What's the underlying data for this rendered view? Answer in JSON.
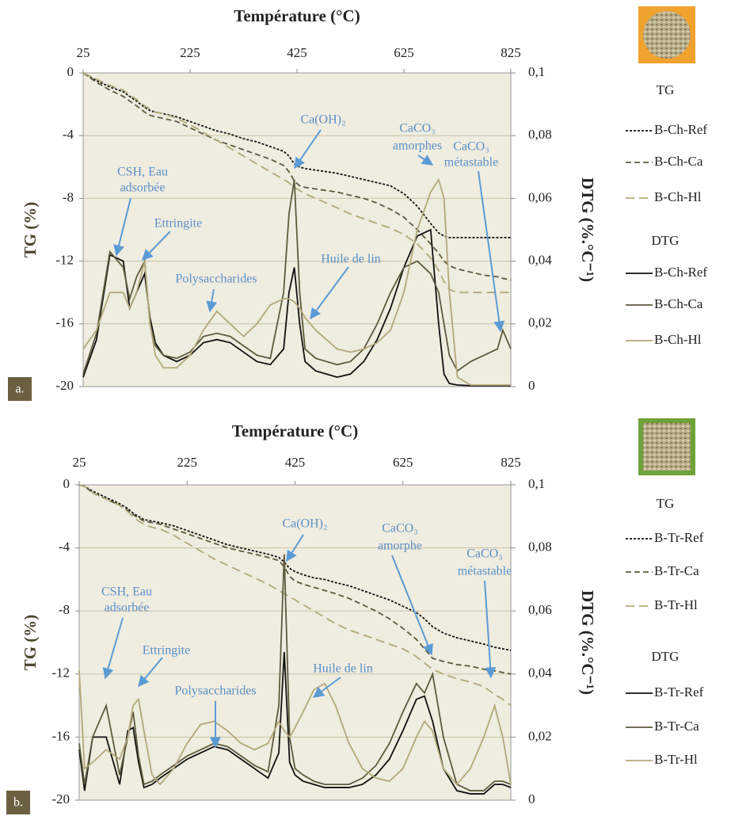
{
  "chart_data": [
    {
      "type": "line",
      "x_label": "Température (°C)",
      "y_label": "TG (%)",
      "y2_label": "DTG (%.°C⁻¹)",
      "panel_label": "a.",
      "x": [
        25,
        50,
        75,
        100,
        112,
        125,
        140,
        150,
        160,
        175,
        200,
        225,
        250,
        275,
        300,
        325,
        350,
        375,
        400,
        410,
        420,
        430,
        440,
        460,
        480,
        500,
        525,
        550,
        575,
        600,
        625,
        650,
        675,
        690,
        700,
        710,
        725,
        750,
        775,
        800,
        810,
        825
      ],
      "xlim": [
        25,
        825
      ],
      "xticks": [
        25,
        225,
        425,
        625,
        825
      ],
      "ylim": [
        -20,
        0
      ],
      "yticks": [
        0,
        -4,
        -8,
        -12,
        -16,
        -20
      ],
      "y2lim": [
        0,
        0.1
      ],
      "y2ticks": [
        {
          "value": 0.1,
          "label": "0,1"
        },
        {
          "value": 0.08,
          "label": "0,08"
        },
        {
          "value": 0.06,
          "label": "0,06"
        },
        {
          "value": 0.04,
          "label": "0,04"
        },
        {
          "value": 0.02,
          "label": "0,02"
        },
        0
      ],
      "grid": true,
      "legend_titles": {
        "y": "TG",
        "y2": "DTG"
      },
      "series": [
        {
          "name": "B-Ch-Ref",
          "color": "#111111",
          "values": [
            0,
            -0.5,
            -0.9,
            -1.2,
            -1.5,
            -1.8,
            -2.2,
            -2.4,
            -2.5,
            -2.6,
            -2.8,
            -3.1,
            -3.4,
            -3.7,
            -3.9,
            -4.2,
            -4.4,
            -4.7,
            -5,
            -5.3,
            -5.8,
            -6,
            -6.1,
            -6.2,
            -6.3,
            -6.4,
            -6.6,
            -6.8,
            -7,
            -7.2,
            -7.7,
            -8.5,
            -9.6,
            -10.2,
            -10.4,
            -10.5,
            -10.5,
            -10.5,
            -10.5,
            -10.5,
            -10.5,
            -10.5
          ]
        },
        {
          "name": "B-Ch-Ca",
          "color": "#5e5a3e",
          "values": [
            0,
            -0.6,
            -1.1,
            -1.5,
            -1.8,
            -2.1,
            -2.5,
            -2.7,
            -2.8,
            -2.9,
            -3.1,
            -3.5,
            -3.9,
            -4.3,
            -4.6,
            -4.9,
            -5.2,
            -5.5,
            -5.9,
            -6.3,
            -6.9,
            -7.2,
            -7.3,
            -7.4,
            -7.5,
            -7.6,
            -7.8,
            -8,
            -8.3,
            -8.7,
            -9.2,
            -10,
            -10.9,
            -11.5,
            -12,
            -12.3,
            -12.5,
            -12.7,
            -12.9,
            -13,
            -13.1,
            -13.2
          ]
        },
        {
          "name": "B-Ch-Hl",
          "color": "#b3a87a",
          "values": [
            0,
            -0.4,
            -0.8,
            -1.1,
            -1.4,
            -1.7,
            -2.1,
            -2.3,
            -2.5,
            -2.6,
            -2.9,
            -3.3,
            -3.8,
            -4.3,
            -4.8,
            -5.3,
            -5.8,
            -6.3,
            -6.8,
            -7,
            -7.3,
            -7.5,
            -7.7,
            -8,
            -8.3,
            -8.6,
            -9,
            -9.3,
            -9.6,
            -9.9,
            -10.3,
            -10.9,
            -11.8,
            -12.6,
            -13.3,
            -13.8,
            -14,
            -14,
            -14,
            -14,
            -14,
            -14
          ]
        },
        {
          "name": "B-Ch-Ref",
          "color": "#111111",
          "axis": "y2",
          "values": [
            0.003,
            0.015,
            0.042,
            0.04,
            0.025,
            0.03,
            0.036,
            0.022,
            0.014,
            0.01,
            0.008,
            0.01,
            0.014,
            0.015,
            0.014,
            0.011,
            0.008,
            0.007,
            0.012,
            0.03,
            0.038,
            0.02,
            0.008,
            0.005,
            0.004,
            0.003,
            0.004,
            0.008,
            0.015,
            0.025,
            0.038,
            0.048,
            0.05,
            0.02,
            0.004,
            0.001,
            0.0005,
            0.0003,
            0.0003,
            0.0003,
            0.0003,
            0.0003
          ]
        },
        {
          "name": "B-Ch-Ca",
          "color": "#5e5a3e",
          "axis": "y2",
          "values": [
            0.004,
            0.017,
            0.043,
            0.038,
            0.028,
            0.035,
            0.04,
            0.02,
            0.013,
            0.01,
            0.009,
            0.011,
            0.016,
            0.017,
            0.016,
            0.013,
            0.01,
            0.009,
            0.03,
            0.055,
            0.066,
            0.03,
            0.012,
            0.009,
            0.008,
            0.007,
            0.008,
            0.012,
            0.02,
            0.03,
            0.038,
            0.04,
            0.036,
            0.03,
            0.02,
            0.01,
            0.005,
            0.008,
            0.01,
            0.012,
            0.018,
            0.012
          ]
        },
        {
          "name": "B-Ch-Hl",
          "color": "#b3a87a",
          "axis": "y2",
          "values": [
            0.012,
            0.018,
            0.03,
            0.03,
            0.025,
            0.03,
            0.04,
            0.02,
            0.01,
            0.006,
            0.006,
            0.01,
            0.018,
            0.024,
            0.02,
            0.016,
            0.02,
            0.026,
            0.028,
            0.028,
            0.027,
            0.025,
            0.022,
            0.018,
            0.015,
            0.012,
            0.011,
            0.012,
            0.014,
            0.018,
            0.03,
            0.05,
            0.062,
            0.066,
            0.06,
            0.03,
            0.003,
            0.0005,
            0.0005,
            0.0005,
            0.0005,
            0.0005
          ]
        }
      ],
      "annotations": [
        {
          "lines": [
            "CSH, Eau",
            "adsorbée"
          ]
        },
        {
          "lines": [
            "Ettringite"
          ]
        },
        {
          "lines": [
            "Polysaccharides"
          ]
        },
        {
          "lines": [
            "Ca(OH)₂"
          ]
        },
        {
          "lines": [
            "CaCO₃",
            "amorphes"
          ]
        },
        {
          "lines": [
            "CaCO₃",
            "métastable"
          ]
        },
        {
          "lines": [
            "Huile de lin"
          ]
        }
      ]
    },
    {
      "type": "line",
      "x_label": "Température (°C)",
      "y_label": "TG (%)",
      "y2_label": "DTG (%.°C⁻¹)",
      "panel_label": "b.",
      "x": [
        25,
        35,
        50,
        75,
        100,
        115,
        125,
        135,
        145,
        160,
        175,
        200,
        225,
        250,
        275,
        300,
        325,
        350,
        375,
        395,
        405,
        415,
        425,
        440,
        460,
        480,
        500,
        525,
        550,
        575,
        600,
        625,
        650,
        665,
        680,
        700,
        725,
        750,
        775,
        795,
        810,
        825
      ],
      "xlim": [
        25,
        825
      ],
      "xticks": [
        25,
        225,
        425,
        625,
        825
      ],
      "ylim": [
        -20,
        0
      ],
      "yticks": [
        0,
        -4,
        -8,
        -12,
        -16,
        -20
      ],
      "y2lim": [
        0,
        0.1
      ],
      "y2ticks": [
        {
          "value": 0.1,
          "label": "0,1"
        },
        {
          "value": 0.08,
          "label": "0,08"
        },
        {
          "value": 0.06,
          "label": "0,06"
        },
        {
          "value": 0.04,
          "label": "0,04"
        },
        {
          "value": 0.02,
          "label": "0,02"
        },
        0
      ],
      "grid": true,
      "legend_titles": {
        "y": "TG",
        "y2": "DTG"
      },
      "series": [
        {
          "name": "B-Tr-Ref",
          "color": "#111111",
          "values": [
            0,
            -0.1,
            -0.4,
            -0.8,
            -1.2,
            -1.5,
            -1.8,
            -2,
            -2.2,
            -2.3,
            -2.4,
            -2.6,
            -2.9,
            -3.2,
            -3.5,
            -3.8,
            -4,
            -4.2,
            -4.4,
            -4.6,
            -4.9,
            -5.3,
            -5.5,
            -5.7,
            -5.9,
            -6,
            -6.2,
            -6.4,
            -6.7,
            -7,
            -7.3,
            -7.7,
            -8.1,
            -8.5,
            -9,
            -9.4,
            -9.7,
            -9.9,
            -10.1,
            -10.3,
            -10.4,
            -10.5
          ]
        },
        {
          "name": "B-Tr-Ca",
          "color": "#5e5a3e",
          "values": [
            0,
            -0.1,
            -0.5,
            -0.9,
            -1.3,
            -1.6,
            -1.9,
            -2.1,
            -2.3,
            -2.4,
            -2.5,
            -2.8,
            -3.1,
            -3.4,
            -3.7,
            -4,
            -4.2,
            -4.4,
            -4.6,
            -4.8,
            -5.2,
            -5.8,
            -6.1,
            -6.3,
            -6.5,
            -6.7,
            -6.9,
            -7.2,
            -7.6,
            -8,
            -8.5,
            -9.1,
            -9.8,
            -10.4,
            -11,
            -11.2,
            -11.4,
            -11.5,
            -11.7,
            -11.8,
            -11.9,
            -12
          ]
        },
        {
          "name": "B-Tr-Hl",
          "color": "#b3a87a",
          "values": [
            0,
            -0.1,
            -0.5,
            -0.9,
            -1.3,
            -1.7,
            -2,
            -2.3,
            -2.5,
            -2.7,
            -2.8,
            -3.2,
            -3.7,
            -4.2,
            -4.7,
            -5.1,
            -5.5,
            -5.9,
            -6.3,
            -6.7,
            -6.9,
            -7.1,
            -7.3,
            -7.6,
            -8,
            -8.4,
            -8.8,
            -9.2,
            -9.5,
            -9.8,
            -10.1,
            -10.4,
            -10.9,
            -11.3,
            -11.7,
            -12,
            -12.3,
            -12.5,
            -12.8,
            -13.3,
            -13.6,
            -14
          ]
        },
        {
          "name": "B-Tr-Ref",
          "color": "#111111",
          "axis": "y2",
          "values": [
            0.016,
            0.003,
            0.02,
            0.02,
            0.005,
            0.022,
            0.023,
            0.012,
            0.004,
            0.005,
            0.007,
            0.01,
            0.013,
            0.015,
            0.017,
            0.016,
            0.013,
            0.01,
            0.007,
            0.015,
            0.047,
            0.012,
            0.008,
            0.006,
            0.005,
            0.004,
            0.004,
            0.004,
            0.005,
            0.008,
            0.013,
            0.022,
            0.032,
            0.033,
            0.025,
            0.01,
            0.003,
            0.002,
            0.002,
            0.005,
            0.005,
            0.004
          ]
        },
        {
          "name": "B-Tr-Ca",
          "color": "#5e5a3e",
          "axis": "y2",
          "values": [
            0.018,
            0.005,
            0.02,
            0.03,
            0.008,
            0.02,
            0.028,
            0.014,
            0.005,
            0.006,
            0.008,
            0.011,
            0.014,
            0.016,
            0.018,
            0.017,
            0.014,
            0.011,
            0.009,
            0.03,
            0.078,
            0.02,
            0.01,
            0.008,
            0.006,
            0.005,
            0.005,
            0.005,
            0.007,
            0.011,
            0.018,
            0.028,
            0.037,
            0.034,
            0.04,
            0.02,
            0.005,
            0.003,
            0.003,
            0.006,
            0.006,
            0.005
          ]
        },
        {
          "name": "B-Tr-Hl",
          "color": "#b3a87a",
          "axis": "y2",
          "values": [
            0.041,
            0.01,
            0.012,
            0.016,
            0.013,
            0.02,
            0.03,
            0.032,
            0.022,
            0.008,
            0.005,
            0.01,
            0.018,
            0.024,
            0.025,
            0.022,
            0.018,
            0.016,
            0.018,
            0.025,
            0.022,
            0.02,
            0.023,
            0.028,
            0.035,
            0.037,
            0.03,
            0.018,
            0.01,
            0.007,
            0.006,
            0.01,
            0.02,
            0.025,
            0.022,
            0.01,
            0.005,
            0.01,
            0.02,
            0.03,
            0.02,
            0.005
          ]
        }
      ],
      "annotations": [
        {
          "lines": [
            "CSH, Eau",
            "adsorbée"
          ]
        },
        {
          "lines": [
            "Ettringite"
          ]
        },
        {
          "lines": [
            "Polysaccharides"
          ]
        },
        {
          "lines": [
            "Ca(OH)₂"
          ]
        },
        {
          "lines": [
            "CaCO₃",
            "amorphe"
          ]
        },
        {
          "lines": [
            "CaCO₃",
            "métastable"
          ]
        },
        {
          "lines": [
            "Huile de lin"
          ]
        }
      ]
    }
  ]
}
